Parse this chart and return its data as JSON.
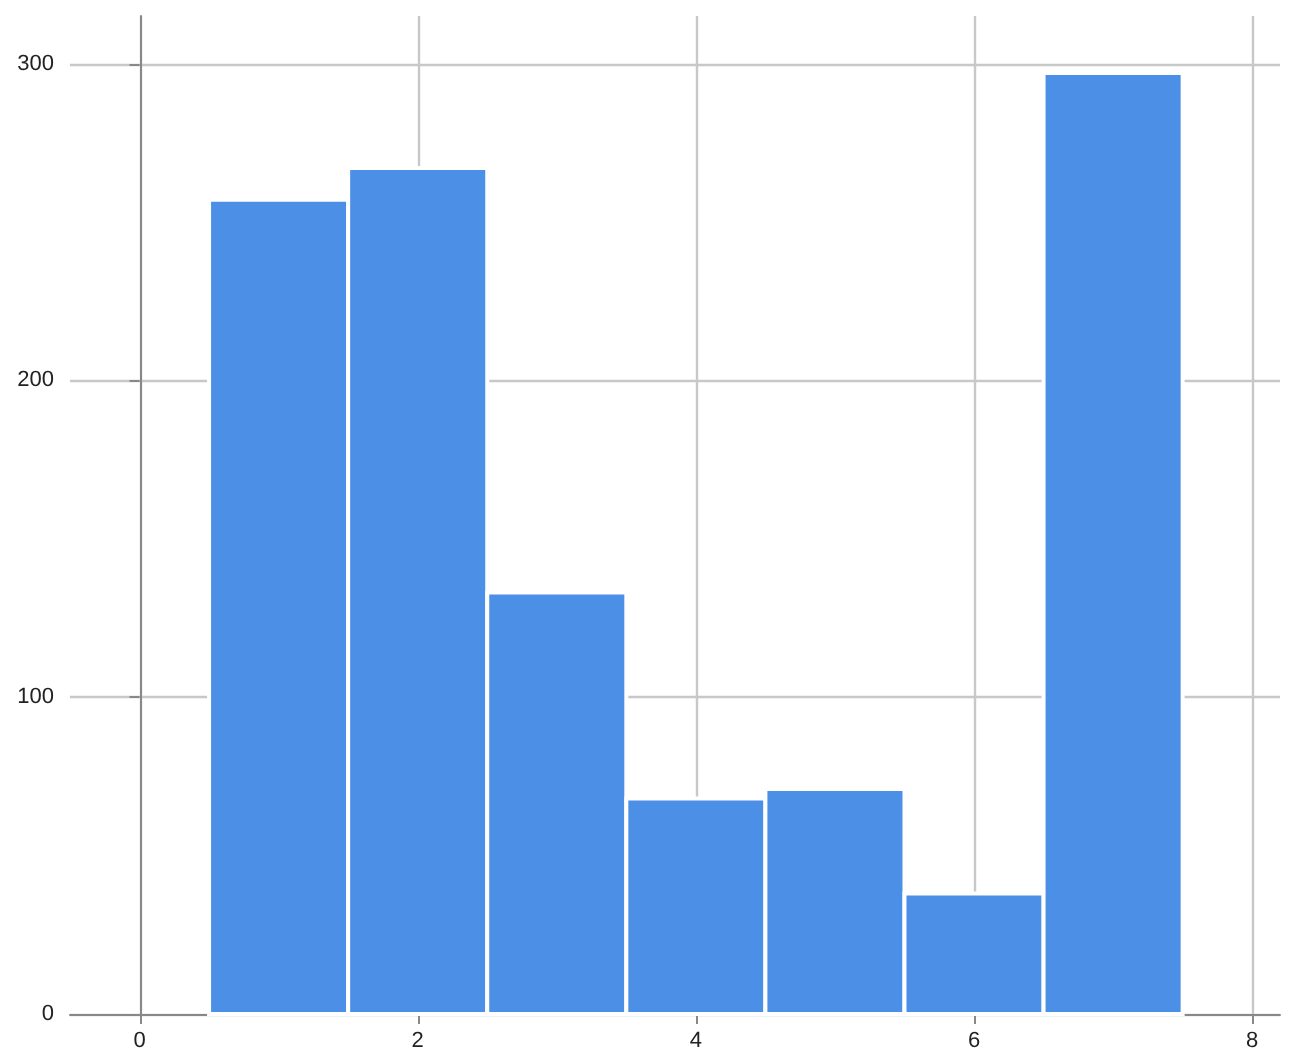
{
  "chart_data": {
    "type": "histogram",
    "bins": [
      0.5,
      1.5,
      2.5,
      3.5,
      4.5,
      5.5,
      6.5,
      7.5
    ],
    "values": [
      257,
      267,
      133,
      68,
      71,
      38,
      297
    ],
    "color": "#4c8fe6",
    "xlim": [
      -0.5,
      8.2
    ],
    "xticks": [
      0,
      2,
      4,
      6,
      8
    ],
    "ylim": [
      0,
      315
    ],
    "yticks": [
      0,
      100,
      200,
      300
    ],
    "grid": true
  }
}
